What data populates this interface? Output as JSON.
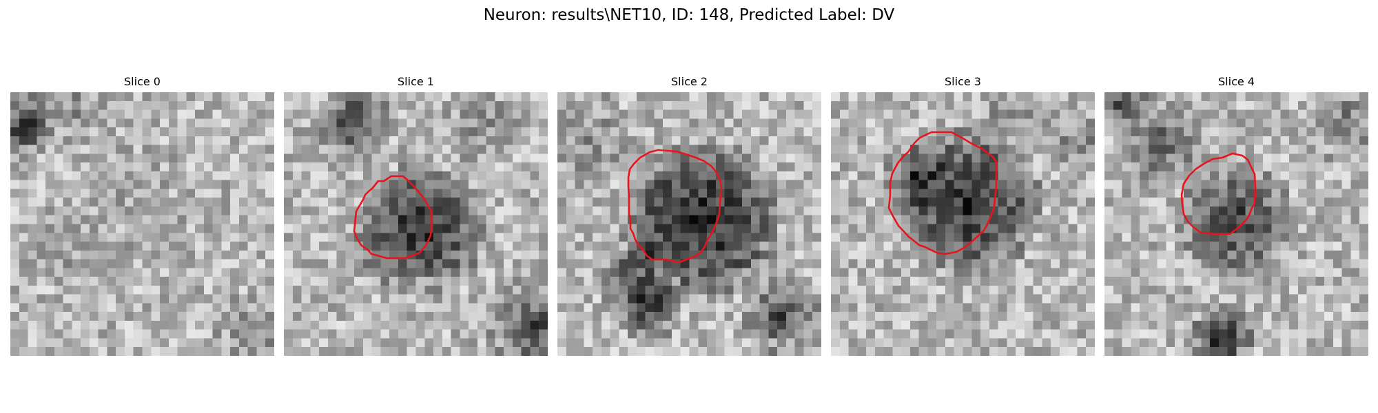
{
  "figure": {
    "title": "Neuron: results\\NET10, ID: 148, Predicted Label: DV"
  },
  "panels": [
    {
      "title": "Slice 0",
      "has_contour": false
    },
    {
      "title": "Slice 1",
      "has_contour": true
    },
    {
      "title": "Slice 2",
      "has_contour": true
    },
    {
      "title": "Slice 3",
      "has_contour": true
    },
    {
      "title": "Slice 4",
      "has_contour": true
    }
  ],
  "colors": {
    "contour": "#e8141c",
    "image_colormap": "grayscale"
  }
}
